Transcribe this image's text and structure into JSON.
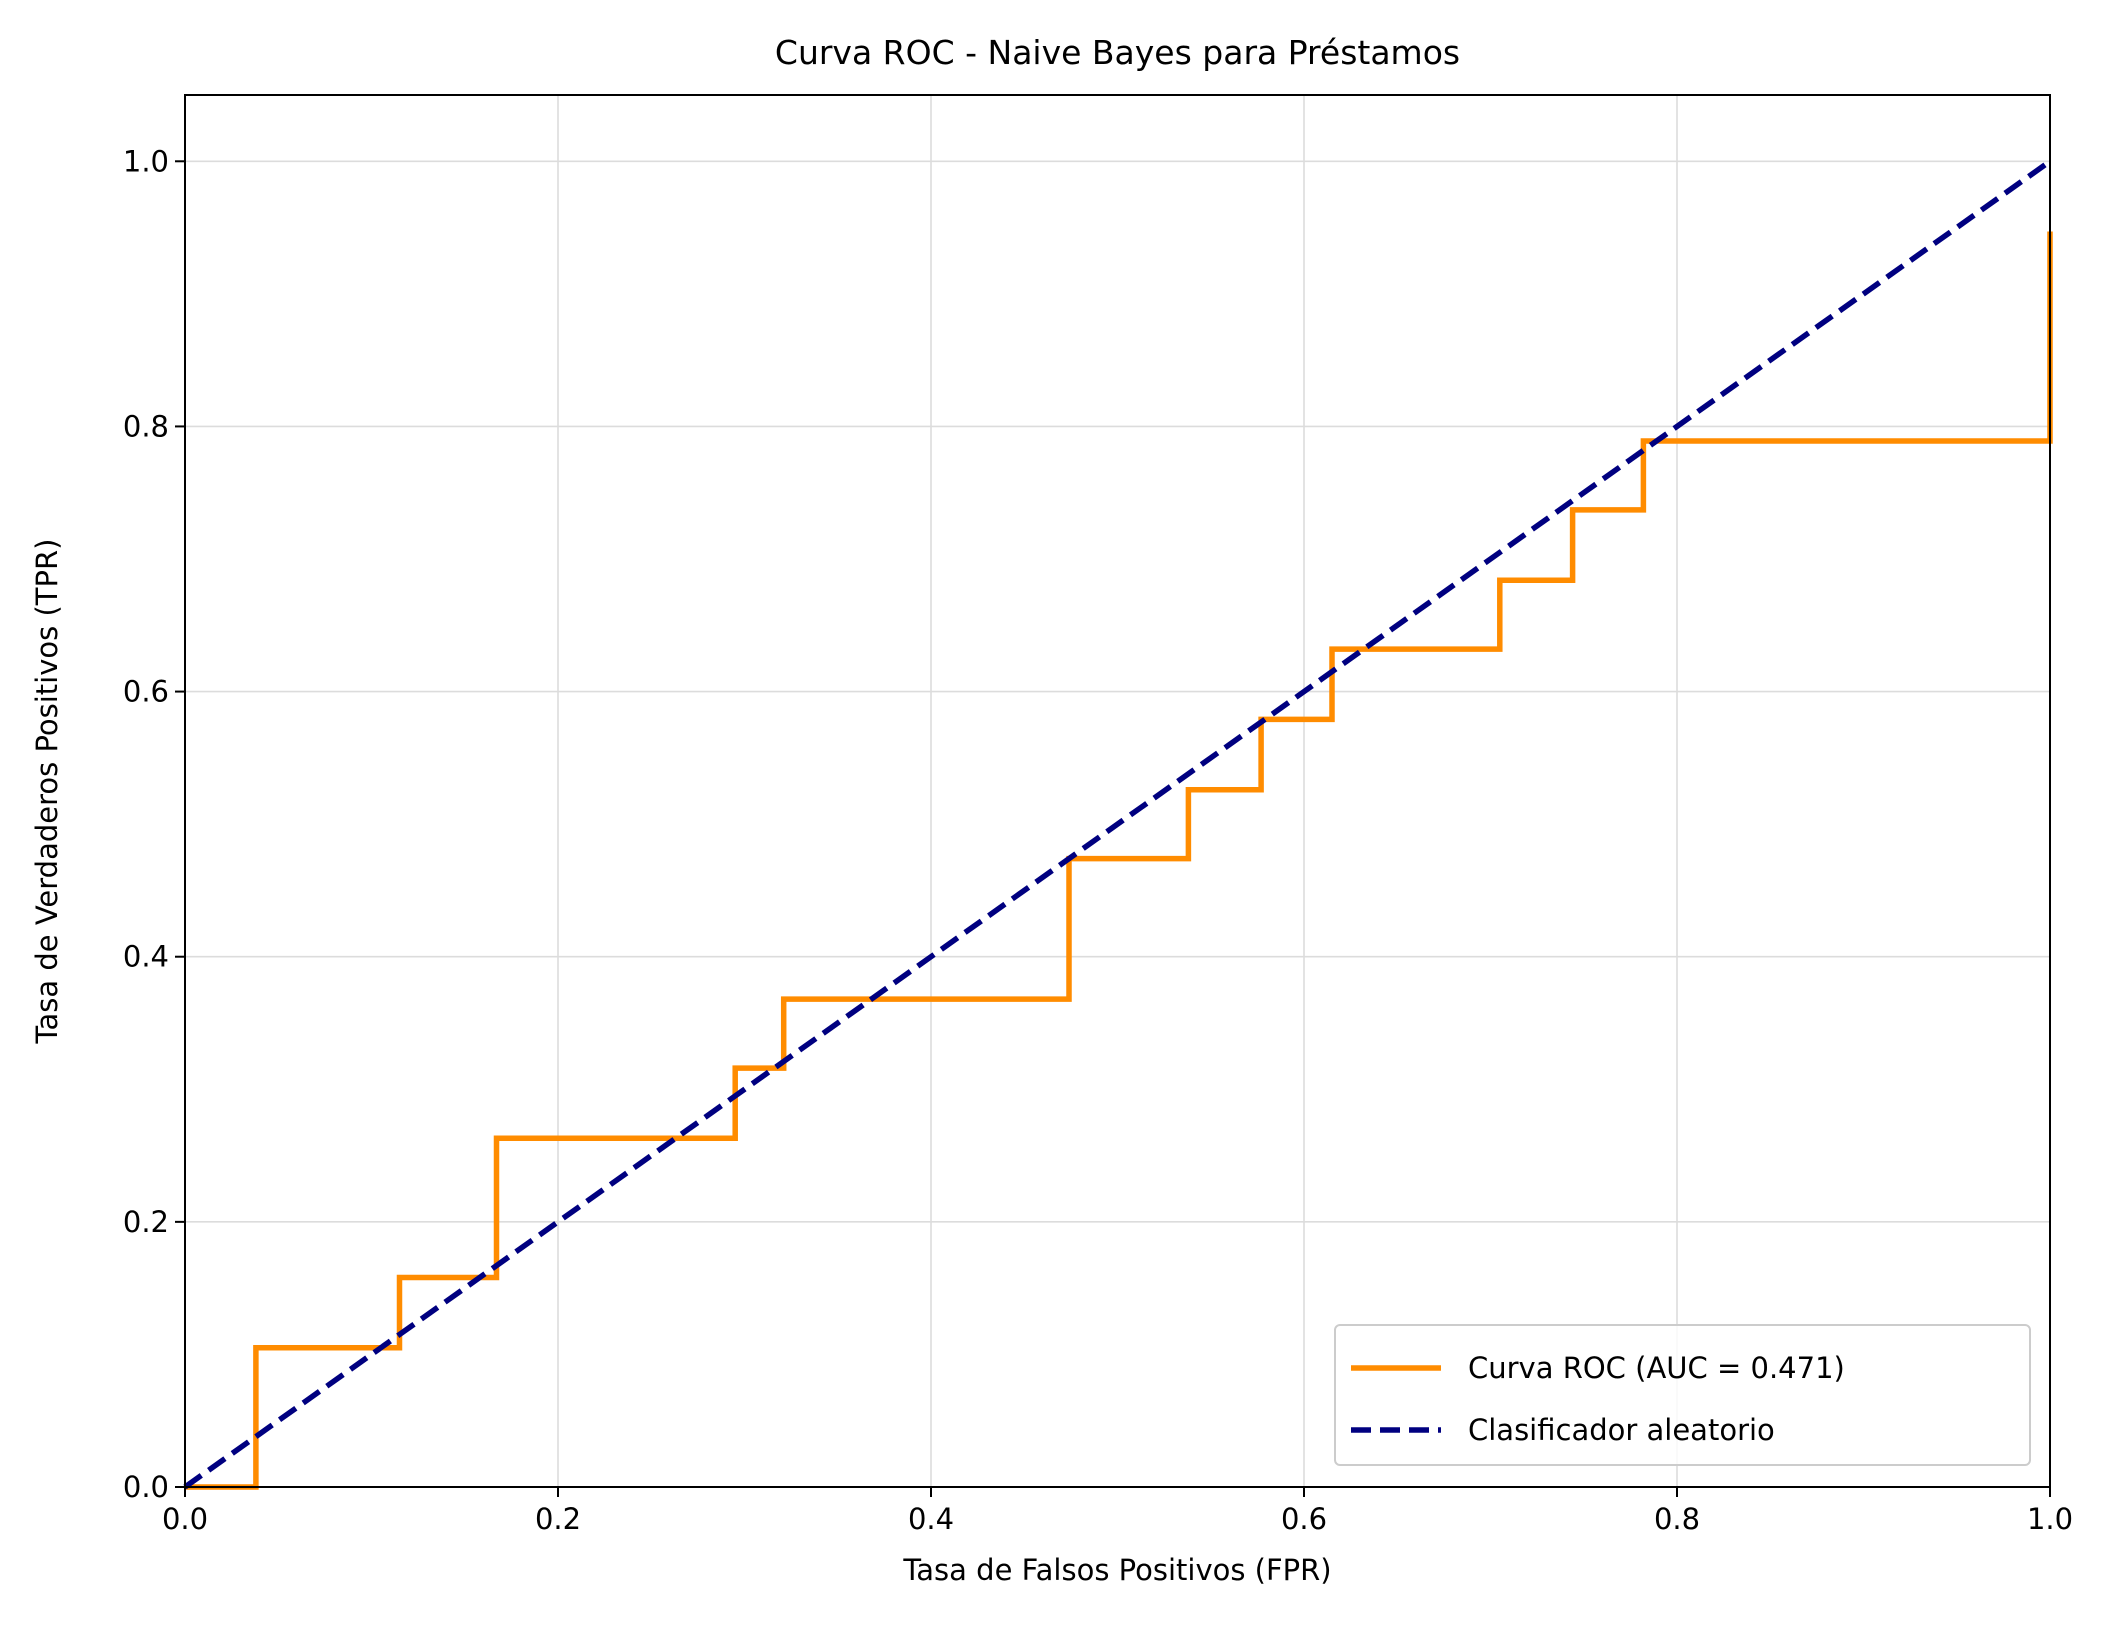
{
  "chart_data": {
    "type": "line",
    "title": "Curva ROC - Naive Bayes para Préstamos",
    "xlabel": "Tasa de Falsos Positivos (FPR)",
    "ylabel": "Tasa de Verdaderos Positivos (TPR)",
    "xlim": [
      0.0,
      1.0
    ],
    "ylim": [
      0.0,
      1.05
    ],
    "xticks": [
      "0.0",
      "0.2",
      "0.4",
      "0.6",
      "0.8",
      "1.0"
    ],
    "yticks": [
      "0.0",
      "0.2",
      "0.4",
      "0.6",
      "0.8",
      "1.0"
    ],
    "grid": true,
    "legend_position": "lower-right",
    "series": [
      {
        "name": "Curva ROC (AUC = 0.471)",
        "color": "#ff8c00",
        "style": "solid",
        "x": [
          0.0,
          0.038,
          0.038,
          0.115,
          0.115,
          0.167,
          0.167,
          0.295,
          0.295,
          0.321,
          0.321,
          0.474,
          0.474,
          0.538,
          0.538,
          0.577,
          0.577,
          0.615,
          0.615,
          0.705,
          0.705,
          0.744,
          0.744,
          0.782,
          0.782,
          1.0,
          1.0
        ],
        "y": [
          0.0,
          0.0,
          0.105,
          0.105,
          0.158,
          0.158,
          0.263,
          0.263,
          0.316,
          0.316,
          0.368,
          0.368,
          0.474,
          0.474,
          0.526,
          0.526,
          0.579,
          0.579,
          0.632,
          0.632,
          0.684,
          0.684,
          0.737,
          0.737,
          0.789,
          0.789,
          0.947
        ]
      },
      {
        "name": "Clasificador aleatorio",
        "color": "#000080",
        "style": "dashed",
        "x": [
          0.0,
          1.0
        ],
        "y": [
          0.0,
          1.0
        ]
      }
    ]
  }
}
